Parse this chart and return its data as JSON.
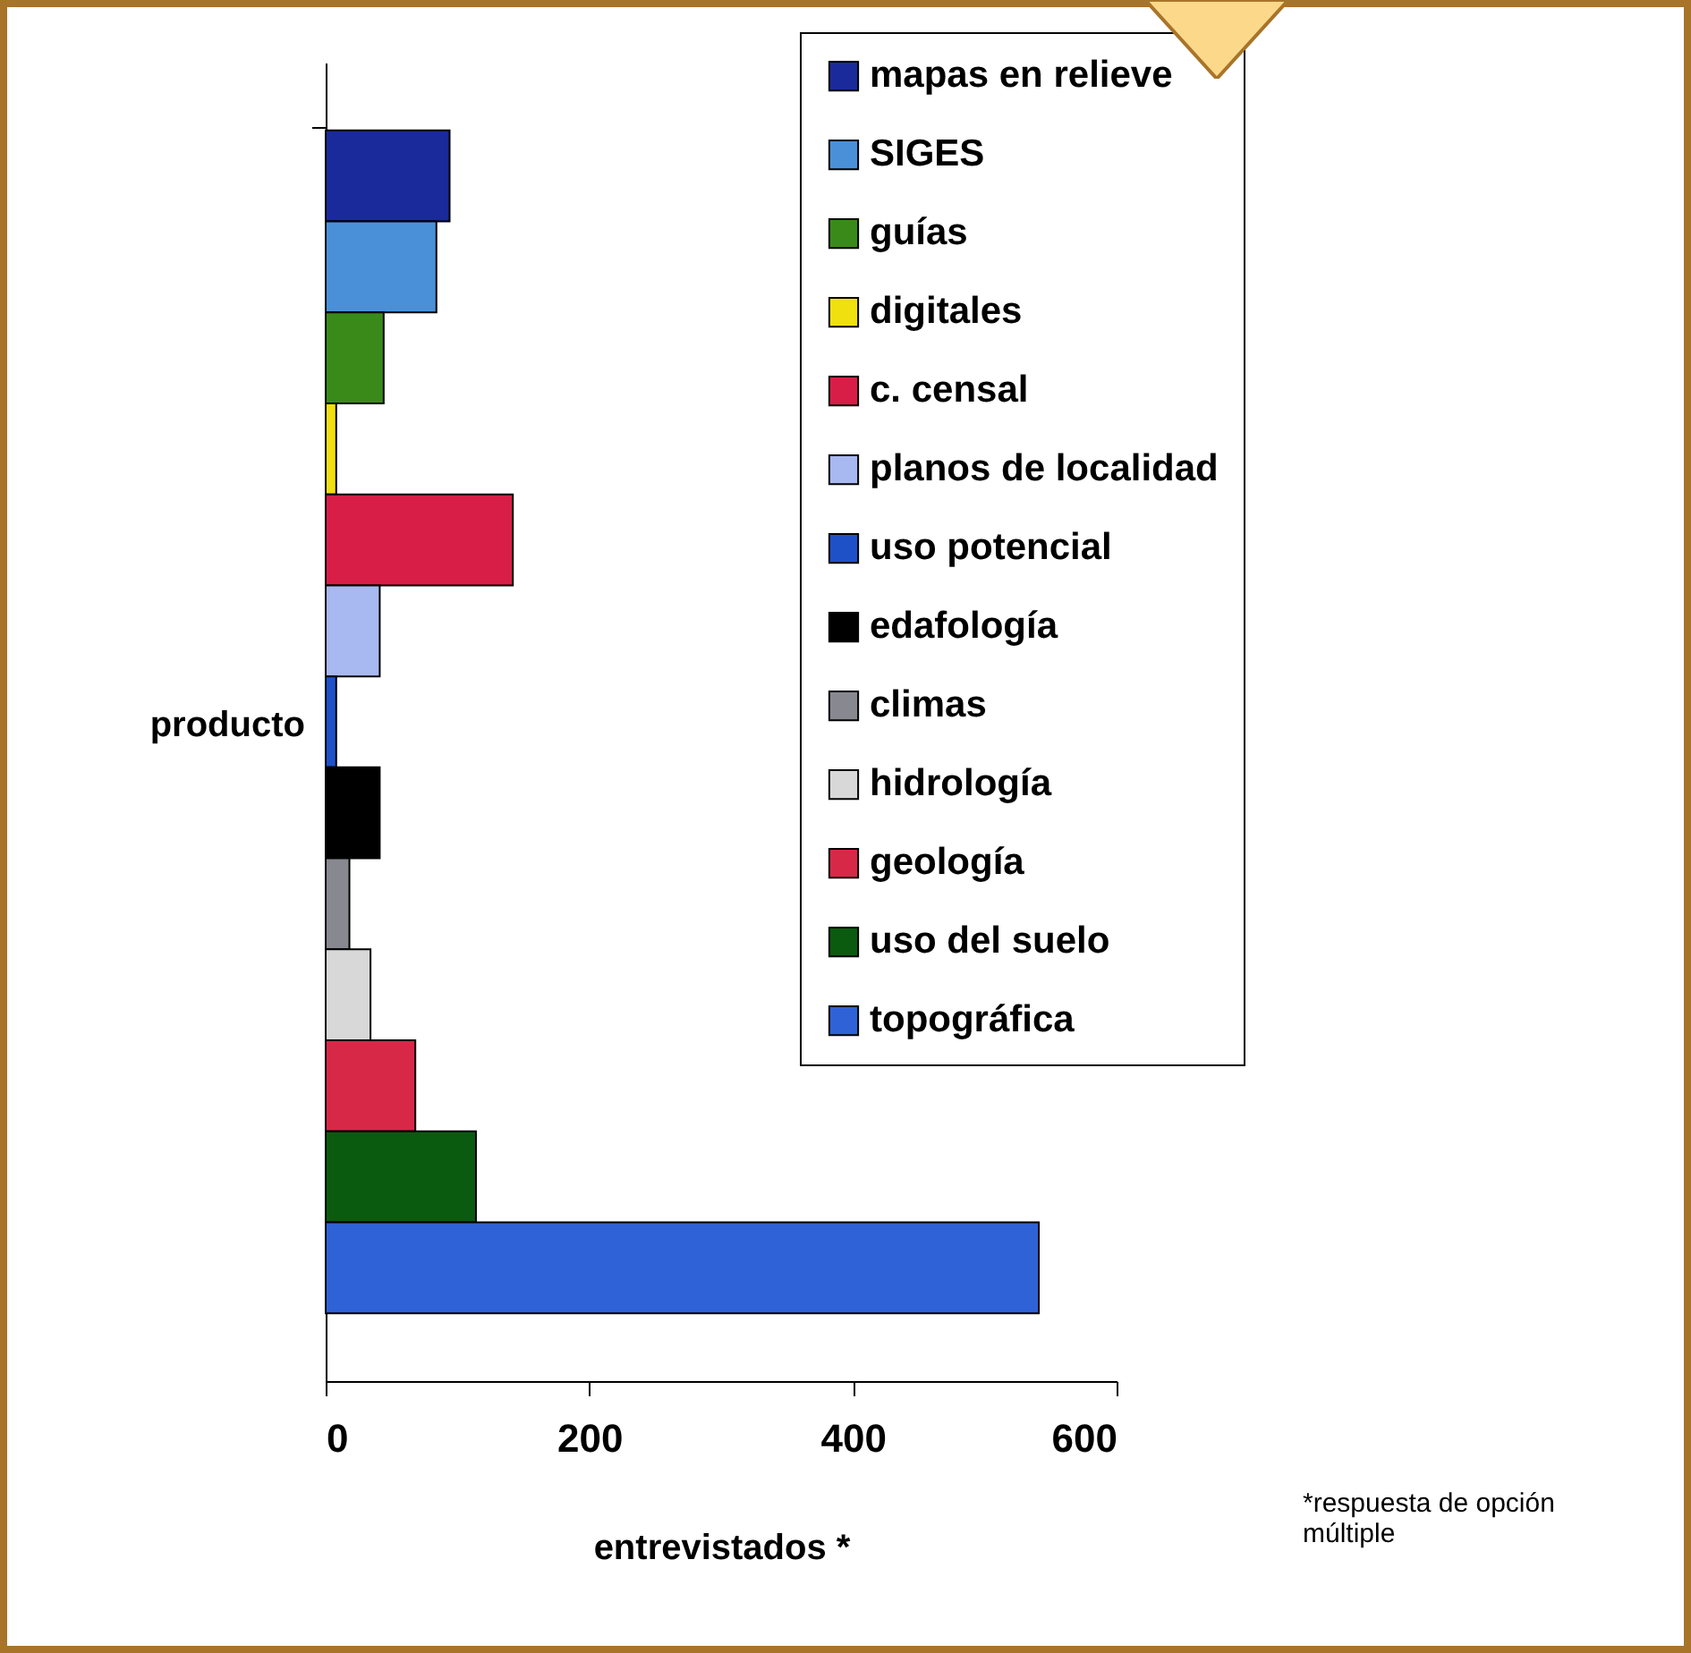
{
  "chart_data": {
    "type": "bar",
    "orientation": "horizontal",
    "xlabel": "entrevistados *",
    "ylabel": "producto",
    "categories": [
      null
    ],
    "series": [
      {
        "name": "mapas en relieve",
        "color": "#1a2a9a",
        "values": [
          94
        ]
      },
      {
        "name": "SIGES",
        "color": "#4a90d9",
        "values": [
          84
        ]
      },
      {
        "name": "guías",
        "color": "#3a8a1a",
        "values": [
          44
        ]
      },
      {
        "name": "digitales",
        "color": "#f0e010",
        "values": [
          8
        ]
      },
      {
        "name": "c. censal",
        "color": "#d81e46",
        "values": [
          142
        ]
      },
      {
        "name": "planos de localidad",
        "color": "#a8b8f0",
        "values": [
          41
        ]
      },
      {
        "name": "uso potencial",
        "color": "#1e50c8",
        "values": [
          8
        ]
      },
      {
        "name": "edafología",
        "color": "#000000",
        "values": [
          41
        ]
      },
      {
        "name": "climas",
        "color": "#888890",
        "values": [
          18
        ]
      },
      {
        "name": "hidrología",
        "color": "#d8d8d8",
        "values": [
          34
        ]
      },
      {
        "name": "geología",
        "color": "#d82848",
        "values": [
          68
        ]
      },
      {
        "name": "uso del suelo",
        "color": "#0a5a10",
        "values": [
          114
        ]
      },
      {
        "name": "topográfica",
        "color": "#2e62d6",
        "values": [
          541
        ]
      }
    ],
    "xlim": [
      0,
      600
    ],
    "xticks": [
      0,
      200,
      400,
      600
    ],
    "grid": false,
    "legend": "top right",
    "tick_labels": "x",
    "annotations": [
      "*respuesta de opción múltiple"
    ]
  }
}
